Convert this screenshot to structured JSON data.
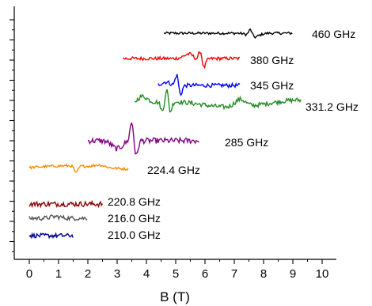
{
  "chart_data": {
    "type": "line",
    "title": "",
    "xlabel": "B (T)",
    "ylabel": "",
    "xlim": [
      -0.5,
      10
    ],
    "xticks": [
      0,
      1,
      2,
      3,
      4,
      5,
      6,
      7,
      8,
      9,
      10
    ],
    "xtick_labels": [
      "0",
      "1",
      "2",
      "3",
      "4",
      "5",
      "6",
      "7",
      "8",
      "9",
      "10"
    ],
    "y_tick_labels_shown": false,
    "grid": false,
    "legend": "none",
    "series": [
      {
        "name": "460 GHz",
        "color": "#000000",
        "x_start": 4.6,
        "x_end": 9.0,
        "features": [
          [
            7.55,
            1.0
          ],
          [
            7.65,
            -0.6
          ]
        ]
      },
      {
        "name": "380 GHz",
        "color": "#ff0000",
        "x_start": 3.2,
        "x_end": 7.2,
        "features": [
          [
            5.5,
            0.6
          ],
          [
            5.75,
            -0.4
          ],
          [
            5.85,
            1.2
          ],
          [
            5.95,
            -1.0
          ]
        ]
      },
      {
        "name": "345 GHz",
        "color": "#0000ff",
        "x_start": 4.4,
        "x_end": 7.2,
        "features": [
          [
            4.75,
            0.6
          ],
          [
            4.85,
            -0.4
          ],
          [
            5.05,
            1.2
          ],
          [
            5.15,
            -1.0
          ]
        ]
      },
      {
        "name": "331.2 GHz",
        "color": "#228b22",
        "x_start": 3.6,
        "x_end": 9.3,
        "features": [
          [
            3.85,
            0.6
          ],
          [
            4.55,
            -0.8
          ],
          [
            4.7,
            1.2
          ],
          [
            4.8,
            -1.0
          ],
          [
            7.2,
            0.6
          ]
        ]
      },
      {
        "name": "285 GHz",
        "color": "#800080",
        "x_start": 2.0,
        "x_end": 5.8,
        "features": [
          [
            3.0,
            -0.5
          ],
          [
            3.5,
            1.2
          ],
          [
            3.65,
            -1.0
          ]
        ]
      },
      {
        "name": "224.4 GHz",
        "color": "#ff8c00",
        "x_start": 0.0,
        "x_end": 3.4,
        "features": [
          [
            1.6,
            -1.0
          ],
          [
            2.4,
            0.3
          ]
        ]
      },
      {
        "name": "220.8 GHz",
        "color": "#8b0000",
        "x_start": 0.0,
        "x_end": 2.5,
        "features": []
      },
      {
        "name": "216.0 GHz",
        "color": "#555555",
        "x_start": 0.0,
        "x_end": 2.0,
        "features": [
          [
            0.9,
            0.4
          ]
        ]
      },
      {
        "name": "210.0 GHz",
        "color": "#00008b",
        "x_start": 0.0,
        "x_end": 1.5,
        "features": []
      }
    ]
  }
}
